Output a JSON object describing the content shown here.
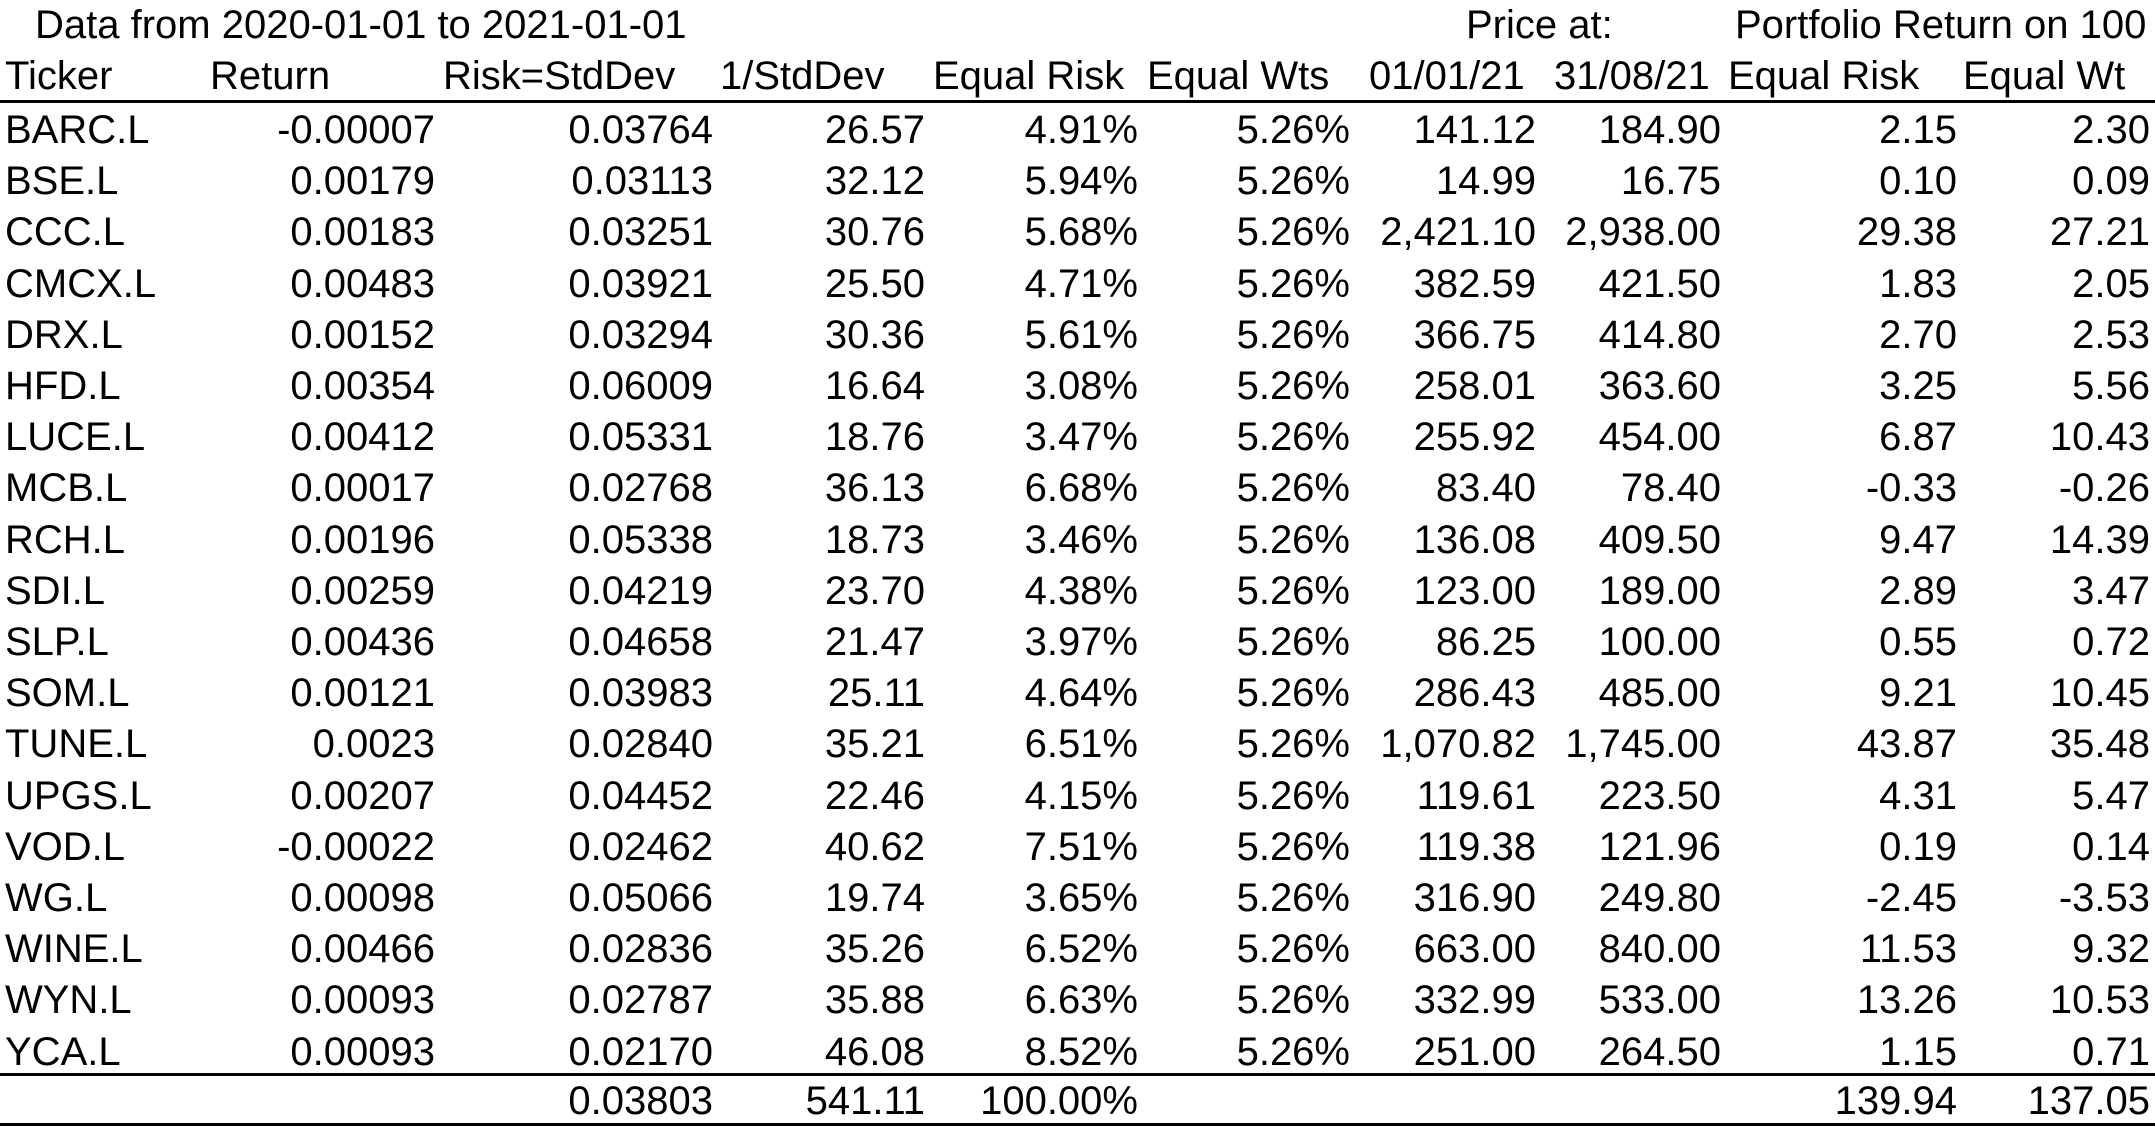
{
  "caption": {
    "data_range": "Data from 2020-01-01 to 2021-01-01",
    "price_at": "Price at:",
    "portfolio_return": "Portfolio Return on 100"
  },
  "columns": [
    "Ticker",
    "Return",
    "Risk=StdDev",
    "1/StdDev",
    "Equal Risk",
    "Equal Wts",
    "01/01/21",
    "31/08/21",
    "Equal Risk",
    "Equal Wt"
  ],
  "rows": [
    [
      "BARC.L",
      "-0.00007",
      "0.03764",
      "26.57",
      "4.91%",
      "5.26%",
      "141.12",
      "184.90",
      "2.15",
      "2.30"
    ],
    [
      "BSE.L",
      "0.00179",
      "0.03113",
      "32.12",
      "5.94%",
      "5.26%",
      "14.99",
      "16.75",
      "0.10",
      "0.09"
    ],
    [
      "CCC.L",
      "0.00183",
      "0.03251",
      "30.76",
      "5.68%",
      "5.26%",
      "2,421.10",
      "2,938.00",
      "29.38",
      "27.21"
    ],
    [
      "CMCX.L",
      "0.00483",
      "0.03921",
      "25.50",
      "4.71%",
      "5.26%",
      "382.59",
      "421.50",
      "1.83",
      "2.05"
    ],
    [
      "DRX.L",
      "0.00152",
      "0.03294",
      "30.36",
      "5.61%",
      "5.26%",
      "366.75",
      "414.80",
      "2.70",
      "2.53"
    ],
    [
      "HFD.L",
      "0.00354",
      "0.06009",
      "16.64",
      "3.08%",
      "5.26%",
      "258.01",
      "363.60",
      "3.25",
      "5.56"
    ],
    [
      "LUCE.L",
      "0.00412",
      "0.05331",
      "18.76",
      "3.47%",
      "5.26%",
      "255.92",
      "454.00",
      "6.87",
      "10.43"
    ],
    [
      "MCB.L",
      "0.00017",
      "0.02768",
      "36.13",
      "6.68%",
      "5.26%",
      "83.40",
      "78.40",
      "-0.33",
      "-0.26"
    ],
    [
      "RCH.L",
      "0.00196",
      "0.05338",
      "18.73",
      "3.46%",
      "5.26%",
      "136.08",
      "409.50",
      "9.47",
      "14.39"
    ],
    [
      "SDI.L",
      "0.00259",
      "0.04219",
      "23.70",
      "4.38%",
      "5.26%",
      "123.00",
      "189.00",
      "2.89",
      "3.47"
    ],
    [
      "SLP.L",
      "0.00436",
      "0.04658",
      "21.47",
      "3.97%",
      "5.26%",
      "86.25",
      "100.00",
      "0.55",
      "0.72"
    ],
    [
      "SOM.L",
      "0.00121",
      "0.03983",
      "25.11",
      "4.64%",
      "5.26%",
      "286.43",
      "485.00",
      "9.21",
      "10.45"
    ],
    [
      "TUNE.L",
      "0.0023",
      "0.02840",
      "35.21",
      "6.51%",
      "5.26%",
      "1,070.82",
      "1,745.00",
      "43.87",
      "35.48"
    ],
    [
      "UPGS.L",
      "0.00207",
      "0.04452",
      "22.46",
      "4.15%",
      "5.26%",
      "119.61",
      "223.50",
      "4.31",
      "5.47"
    ],
    [
      "VOD.L",
      "-0.00022",
      "0.02462",
      "40.62",
      "7.51%",
      "5.26%",
      "119.38",
      "121.96",
      "0.19",
      "0.14"
    ],
    [
      "WG.L",
      "0.00098",
      "0.05066",
      "19.74",
      "3.65%",
      "5.26%",
      "316.90",
      "249.80",
      "-2.45",
      "-3.53"
    ],
    [
      "WINE.L",
      "0.00466",
      "0.02836",
      "35.26",
      "6.52%",
      "5.26%",
      "663.00",
      "840.00",
      "11.53",
      "9.32"
    ],
    [
      "WYN.L",
      "0.00093",
      "0.02787",
      "35.88",
      "6.63%",
      "5.26%",
      "332.99",
      "533.00",
      "13.26",
      "10.53"
    ],
    [
      "YCA.L",
      "0.00093",
      "0.02170",
      "46.08",
      "8.52%",
      "5.26%",
      "251.00",
      "264.50",
      "1.15",
      "0.71"
    ]
  ],
  "totals": [
    "",
    "",
    "0.03803",
    "541.11",
    "100.00%",
    "",
    "",
    "",
    "139.94",
    "137.05"
  ]
}
